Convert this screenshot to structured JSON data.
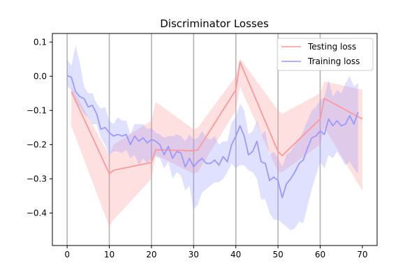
{
  "chart_data": {
    "type": "line",
    "title": "Discriminator Losses",
    "xlabel": "",
    "ylabel": "",
    "xlim": [
      -3.5,
      73.5
    ],
    "ylim": [
      -0.495,
      0.125
    ],
    "x_ticks": [
      0,
      10,
      20,
      30,
      40,
      50,
      60,
      70
    ],
    "y_ticks": [
      0.1,
      0.0,
      -0.1,
      -0.2,
      -0.3,
      -0.4
    ],
    "x_tick_labels": [
      "0",
      "10",
      "20",
      "30",
      "40",
      "50",
      "60",
      "70"
    ],
    "y_tick_labels": [
      "0.1",
      "0.0",
      "−0.1",
      "−0.2",
      "−0.3",
      "−0.4"
    ],
    "vertical_lines_x": [
      0,
      10,
      20,
      30,
      40,
      50,
      60
    ],
    "legend_position": "upper right",
    "series": [
      {
        "name": "Testing loss",
        "color": "#ff9999",
        "x": [
          1,
          10,
          11,
          20,
          21,
          30,
          31,
          40,
          41,
          50,
          51,
          60,
          61,
          70
        ],
        "y": [
          -0.045,
          -0.285,
          -0.275,
          -0.252,
          -0.215,
          -0.218,
          -0.215,
          -0.04,
          0.042,
          -0.22,
          -0.232,
          -0.125,
          -0.065,
          -0.125
        ],
        "lower": [
          -0.145,
          -0.44,
          -0.42,
          -0.3,
          -0.23,
          -0.285,
          -0.28,
          -0.1,
          -0.03,
          -0.28,
          -0.28,
          -0.2,
          -0.15,
          -0.335
        ],
        "upper": [
          -0.03,
          -0.23,
          -0.2,
          -0.13,
          -0.075,
          -0.155,
          -0.15,
          0.0,
          0.052,
          -0.1,
          -0.11,
          -0.05,
          -0.015,
          -0.04
        ]
      },
      {
        "name": "Training loss",
        "color": "#9999ff",
        "x": [
          0,
          1,
          2,
          3,
          4,
          5,
          6,
          7,
          8,
          9,
          10,
          11,
          12,
          13,
          14,
          15,
          16,
          17,
          18,
          19,
          20,
          21,
          22,
          23,
          24,
          25,
          26,
          27,
          28,
          29,
          30,
          31,
          32,
          33,
          34,
          35,
          36,
          37,
          38,
          39,
          40,
          41,
          42,
          43,
          44,
          45,
          46,
          47,
          48,
          49,
          50,
          51,
          52,
          53,
          54,
          55,
          56,
          57,
          58,
          59,
          60,
          61,
          62,
          63,
          64,
          65,
          66,
          67,
          68,
          69
        ],
        "y": [
          0.002,
          -0.003,
          -0.045,
          -0.06,
          -0.065,
          -0.09,
          -0.085,
          -0.11,
          -0.155,
          -0.15,
          -0.165,
          -0.175,
          -0.17,
          -0.175,
          -0.17,
          -0.2,
          -0.175,
          -0.19,
          -0.18,
          -0.195,
          -0.185,
          -0.19,
          -0.2,
          -0.23,
          -0.205,
          -0.24,
          -0.22,
          -0.225,
          -0.265,
          -0.24,
          -0.265,
          -0.25,
          -0.24,
          -0.255,
          -0.255,
          -0.245,
          -0.26,
          -0.235,
          -0.25,
          -0.2,
          -0.175,
          -0.145,
          -0.175,
          -0.23,
          -0.22,
          -0.19,
          -0.25,
          -0.255,
          -0.305,
          -0.295,
          -0.305,
          -0.355,
          -0.315,
          -0.3,
          -0.28,
          -0.255,
          -0.245,
          -0.21,
          -0.18,
          -0.175,
          -0.16,
          -0.17,
          -0.125,
          -0.145,
          -0.13,
          -0.145,
          -0.14,
          -0.115,
          -0.14,
          -0.105
        ],
        "lower": [
          -0.03,
          -0.04,
          -0.08,
          -0.09,
          -0.11,
          -0.12,
          -0.14,
          -0.14,
          -0.18,
          -0.2,
          -0.23,
          -0.22,
          -0.22,
          -0.225,
          -0.215,
          -0.24,
          -0.23,
          -0.26,
          -0.24,
          -0.255,
          -0.24,
          -0.235,
          -0.24,
          -0.27,
          -0.25,
          -0.3,
          -0.28,
          -0.29,
          -0.335,
          -0.32,
          -0.39,
          -0.375,
          -0.34,
          -0.33,
          -0.32,
          -0.31,
          -0.31,
          -0.3,
          -0.28,
          -0.255,
          -0.27,
          -0.26,
          -0.26,
          -0.275,
          -0.28,
          -0.3,
          -0.36,
          -0.36,
          -0.4,
          -0.42,
          -0.42,
          -0.43,
          -0.44,
          -0.45,
          -0.445,
          -0.425,
          -0.43,
          -0.38,
          -0.33,
          -0.29,
          -0.25,
          -0.27,
          -0.23,
          -0.24,
          -0.22,
          -0.24,
          -0.26,
          -0.25,
          -0.27,
          -0.285
        ],
        "upper": [
          0.05,
          0.03,
          0.09,
          0.04,
          -0.03,
          -0.05,
          -0.05,
          -0.08,
          -0.095,
          -0.09,
          -0.13,
          -0.14,
          -0.12,
          -0.13,
          -0.13,
          -0.17,
          -0.14,
          -0.14,
          -0.14,
          -0.155,
          -0.15,
          -0.165,
          -0.17,
          -0.18,
          -0.175,
          -0.175,
          -0.17,
          -0.175,
          -0.19,
          -0.17,
          -0.185,
          -0.18,
          -0.16,
          -0.18,
          -0.185,
          -0.175,
          -0.2,
          -0.19,
          -0.19,
          -0.135,
          -0.12,
          -0.08,
          -0.1,
          -0.17,
          -0.16,
          -0.13,
          -0.17,
          -0.16,
          -0.23,
          -0.22,
          -0.24,
          -0.265,
          -0.23,
          -0.22,
          -0.2,
          -0.185,
          -0.16,
          -0.13,
          -0.1,
          -0.09,
          -0.07,
          -0.06,
          -0.01,
          -0.06,
          -0.04,
          -0.05,
          -0.02,
          0.0,
          -0.03,
          -0.02
        ]
      }
    ]
  }
}
